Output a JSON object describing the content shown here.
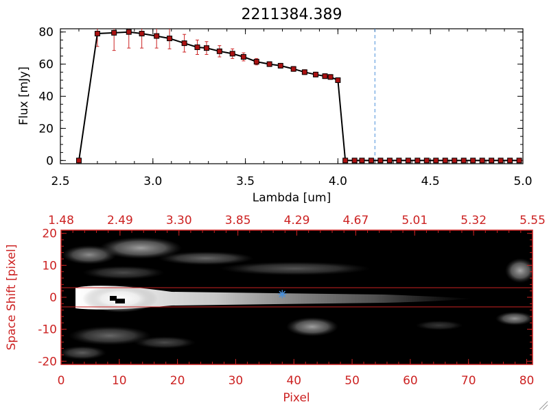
{
  "colors": {
    "axis_black": "#000000",
    "axis_red": "#cc2222",
    "errorbar_red": "#cc2222",
    "marker_red": "#aa1111",
    "dashed_blue": "#4a90d9",
    "star_blue": "#4a90d9",
    "image_background": "#000000"
  },
  "chart_data": [
    {
      "type": "line",
      "title": "2211384.389",
      "xlabel": "Lambda [um]",
      "ylabel": "Flux [mJy]",
      "xlim": [
        2.5,
        5.0
      ],
      "ylim": [
        -2,
        82
      ],
      "xticks": [
        "2.5",
        "3.0",
        "3.5",
        "4.0",
        "4.5",
        "5.0"
      ],
      "yticks": [
        "0",
        "20",
        "40",
        "60",
        "80"
      ],
      "vline_x": 4.2,
      "series": [
        {
          "x": [
            2.6,
            2.7,
            2.79,
            2.87,
            2.94,
            3.02,
            3.09,
            3.17,
            3.24,
            3.29,
            3.36,
            3.43,
            3.49,
            3.56,
            3.63,
            3.69,
            3.76,
            3.82,
            3.88,
            3.93,
            3.96,
            4.0,
            4.04,
            4.09,
            4.13,
            4.18,
            4.23,
            4.28,
            4.33,
            4.38,
            4.43,
            4.48,
            4.53,
            4.58,
            4.63,
            4.68,
            4.73,
            4.78,
            4.83,
            4.88,
            4.93,
            4.98
          ],
          "y": [
            0,
            79,
            79.5,
            80,
            79,
            77.5,
            76,
            73,
            70.5,
            70,
            68,
            66.5,
            64.5,
            61.5,
            60,
            59,
            57,
            55,
            53.5,
            52.5,
            52,
            50,
            0,
            0,
            0,
            0,
            0,
            0,
            0,
            0,
            0,
            0,
            0,
            0,
            0,
            0,
            0,
            0,
            0,
            0,
            0,
            0
          ],
          "yerr": [
            0,
            8,
            11,
            10,
            9,
            7.5,
            6.5,
            5.5,
            4.5,
            4,
            3.5,
            3,
            2.5,
            2,
            1.5,
            1.5,
            1.5,
            1.5,
            1.5,
            1.5,
            1.5,
            1.5,
            0,
            0,
            0,
            0,
            0,
            0,
            0,
            0,
            0,
            0,
            0,
            0,
            0,
            0,
            0,
            0,
            0,
            0,
            0,
            0
          ]
        }
      ]
    },
    {
      "type": "heatmap",
      "xlabel": "Pixel",
      "ylabel": "Space Shift [pixel]",
      "xlim": [
        0,
        81
      ],
      "ylim": [
        -21,
        21
      ],
      "xticks": [
        "0",
        "10",
        "20",
        "30",
        "40",
        "50",
        "60",
        "70",
        "80"
      ],
      "yticks": [
        "-20",
        "-10",
        "0",
        "10",
        "20"
      ],
      "top_ticks": [
        "1.48",
        "2.49",
        "3.30",
        "3.85",
        "4.29",
        "4.67",
        "5.01",
        "5.32",
        "5.55"
      ],
      "hlines": [
        3,
        -3
      ],
      "star_marker": {
        "x": 38,
        "y": 1
      }
    }
  ]
}
